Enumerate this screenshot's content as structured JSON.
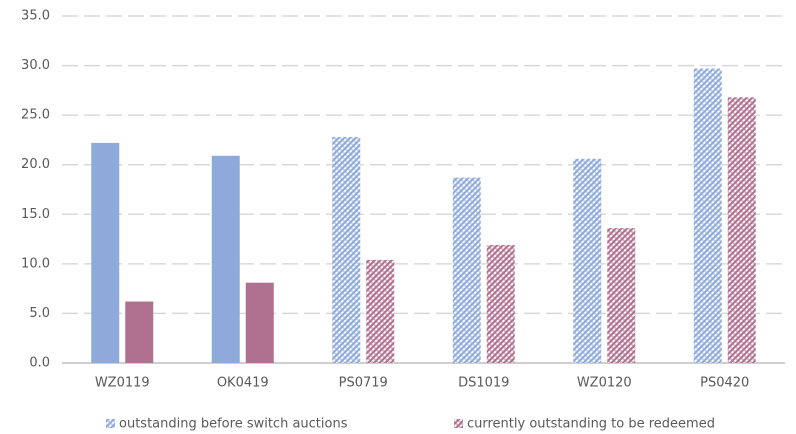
{
  "chart_data": {
    "type": "bar",
    "categories": [
      "WZ0119",
      "OK0419",
      "PS0719",
      "DS1019",
      "WZ0120",
      "PS0420"
    ],
    "series": [
      {
        "name": "outstanding before switch auctions",
        "color": "#8eaadb",
        "values": [
          22.2,
          20.9,
          22.8,
          18.7,
          20.6,
          29.7
        ]
      },
      {
        "name": "currently outstanding to be redeemed",
        "color": "#b0708f",
        "values": [
          6.2,
          8.1,
          10.4,
          11.9,
          13.6,
          26.8
        ]
      }
    ],
    "hatched": [
      false,
      false,
      true,
      true,
      true,
      true
    ],
    "ylim": [
      0,
      35
    ],
    "yticks": [
      {
        "value": 0,
        "label": "0.0"
      },
      {
        "value": 5,
        "label": "5.0"
      },
      {
        "value": 10,
        "label": "10.0"
      },
      {
        "value": 15,
        "label": "15.0"
      },
      {
        "value": 20,
        "label": "20.0"
      },
      {
        "value": 25,
        "label": "25.0"
      },
      {
        "value": 30,
        "label": "30.0"
      },
      {
        "value": 35,
        "label": "35.0"
      }
    ],
    "grid": true,
    "legend": "bottom"
  }
}
